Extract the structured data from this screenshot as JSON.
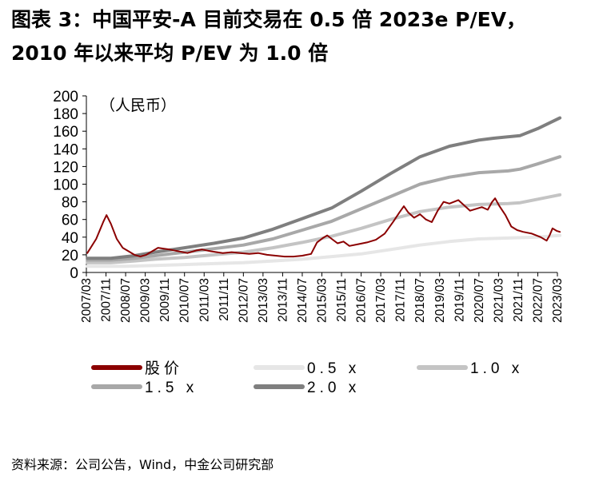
{
  "figure": {
    "title_line1": "图表 3：中国平安-A 目前交易在 0.5 倍 2023e P/EV，",
    "title_line2": "2010 年以来平均 P/EV 为 1.0 倍",
    "source": "资料来源：公司公告，Wind，中金公司研究部"
  },
  "chart_data": {
    "type": "line",
    "unit_label": "（人民币）",
    "ylim": [
      0,
      200
    ],
    "yticks": [
      "0",
      "20",
      "40",
      "60",
      "80",
      "100",
      "120",
      "140",
      "160",
      "180",
      "200"
    ],
    "x_tick_labels": [
      "2007/03",
      "2007/11",
      "2008/07",
      "2009/03",
      "2009/11",
      "2010/07",
      "2011/03",
      "2011/11",
      "2012/07",
      "2013/03",
      "2013/11",
      "2014/07",
      "2015/03",
      "2015/11",
      "2016/07",
      "2017/03",
      "2017/11",
      "2018/07",
      "2019/03",
      "2019/11",
      "2020/07",
      "2021/03",
      "2021/11",
      "2022/07",
      "2023/03"
    ],
    "legend_position": "bottom",
    "series": [
      {
        "name": "股价",
        "legend_label": "股价",
        "color": "#8b0000",
        "width": 2,
        "points": [
          [
            2007.2,
            22
          ],
          [
            2007.5,
            38
          ],
          [
            2007.75,
            58
          ],
          [
            2007.85,
            65
          ],
          [
            2008.0,
            55
          ],
          [
            2008.2,
            38
          ],
          [
            2008.4,
            28
          ],
          [
            2008.6,
            24
          ],
          [
            2008.8,
            20
          ],
          [
            2009.0,
            18
          ],
          [
            2009.2,
            20
          ],
          [
            2009.4,
            24
          ],
          [
            2009.6,
            28
          ],
          [
            2009.8,
            27
          ],
          [
            2010.0,
            26
          ],
          [
            2010.3,
            24
          ],
          [
            2010.6,
            22
          ],
          [
            2010.9,
            25
          ],
          [
            2011.1,
            26
          ],
          [
            2011.4,
            24
          ],
          [
            2011.8,
            22
          ],
          [
            2012.1,
            23
          ],
          [
            2012.4,
            22
          ],
          [
            2012.7,
            21
          ],
          [
            2013.0,
            22
          ],
          [
            2013.3,
            20
          ],
          [
            2013.6,
            19
          ],
          [
            2013.9,
            18
          ],
          [
            2014.2,
            18
          ],
          [
            2014.5,
            19
          ],
          [
            2014.8,
            21
          ],
          [
            2015.0,
            34
          ],
          [
            2015.2,
            39
          ],
          [
            2015.35,
            42
          ],
          [
            2015.5,
            38
          ],
          [
            2015.7,
            33
          ],
          [
            2015.9,
            35
          ],
          [
            2016.1,
            30
          ],
          [
            2016.4,
            32
          ],
          [
            2016.7,
            34
          ],
          [
            2017.0,
            37
          ],
          [
            2017.3,
            44
          ],
          [
            2017.6,
            58
          ],
          [
            2017.8,
            68
          ],
          [
            2017.95,
            75
          ],
          [
            2018.1,
            68
          ],
          [
            2018.3,
            62
          ],
          [
            2018.5,
            66
          ],
          [
            2018.7,
            60
          ],
          [
            2018.9,
            57
          ],
          [
            2019.1,
            70
          ],
          [
            2019.3,
            80
          ],
          [
            2019.5,
            78
          ],
          [
            2019.8,
            82
          ],
          [
            2020.0,
            76
          ],
          [
            2020.2,
            70
          ],
          [
            2020.4,
            72
          ],
          [
            2020.6,
            74
          ],
          [
            2020.8,
            71
          ],
          [
            2020.95,
            80
          ],
          [
            2021.05,
            84
          ],
          [
            2021.2,
            75
          ],
          [
            2021.4,
            65
          ],
          [
            2021.6,
            52
          ],
          [
            2021.8,
            48
          ],
          [
            2022.0,
            46
          ],
          [
            2022.3,
            44
          ],
          [
            2022.6,
            40
          ],
          [
            2022.8,
            36
          ],
          [
            2022.9,
            42
          ],
          [
            2023.0,
            50
          ],
          [
            2023.15,
            47
          ],
          [
            2023.25,
            46
          ]
        ]
      },
      {
        "name": "0.5 x",
        "legend_label": "0.5 x",
        "color": "#e6e6e6",
        "width": 4,
        "points": [
          [
            2007.2,
            7
          ],
          [
            2008.5,
            7
          ],
          [
            2009.5,
            8
          ],
          [
            2010.5,
            9
          ],
          [
            2011.5,
            10
          ],
          [
            2012.5,
            11
          ],
          [
            2013.5,
            13
          ],
          [
            2014.5,
            15
          ],
          [
            2015.5,
            18
          ],
          [
            2016.5,
            21
          ],
          [
            2017.5,
            26
          ],
          [
            2018.5,
            31
          ],
          [
            2019.5,
            35
          ],
          [
            2020.5,
            38
          ],
          [
            2021.5,
            39
          ],
          [
            2022.5,
            40
          ],
          [
            2023.25,
            42
          ]
        ]
      },
      {
        "name": "1.0 x",
        "legend_label": "1.0 x",
        "color": "#c4c4c4",
        "width": 4,
        "points": [
          [
            2007.2,
            11
          ],
          [
            2008.0,
            11
          ],
          [
            2008.8,
            13
          ],
          [
            2009.5,
            15
          ],
          [
            2010.5,
            17
          ],
          [
            2011.5,
            20
          ],
          [
            2012.5,
            23
          ],
          [
            2013.5,
            28
          ],
          [
            2014.5,
            34
          ],
          [
            2015.5,
            41
          ],
          [
            2016.5,
            50
          ],
          [
            2017.5,
            60
          ],
          [
            2018.5,
            69
          ],
          [
            2019.5,
            74
          ],
          [
            2020.5,
            77
          ],
          [
            2021.5,
            78
          ],
          [
            2021.9,
            79
          ],
          [
            2022.5,
            83
          ],
          [
            2023.25,
            88
          ]
        ]
      },
      {
        "name": "1.5 x",
        "legend_label": "1.5 x",
        "color": "#a8a8a8",
        "width": 4,
        "points": [
          [
            2007.2,
            14
          ],
          [
            2008.0,
            14
          ],
          [
            2008.8,
            16
          ],
          [
            2009.5,
            19
          ],
          [
            2010.5,
            23
          ],
          [
            2011.5,
            27
          ],
          [
            2012.5,
            31
          ],
          [
            2013.5,
            38
          ],
          [
            2014.5,
            48
          ],
          [
            2015.5,
            58
          ],
          [
            2016.5,
            72
          ],
          [
            2017.5,
            86
          ],
          [
            2018.5,
            100
          ],
          [
            2019.5,
            108
          ],
          [
            2020.5,
            113
          ],
          [
            2021.5,
            115
          ],
          [
            2021.9,
            117
          ],
          [
            2022.5,
            123
          ],
          [
            2023.25,
            131
          ]
        ]
      },
      {
        "name": "2.0 x",
        "legend_label": "2.0 x",
        "color": "#7f7f7f",
        "width": 4,
        "points": [
          [
            2007.2,
            16
          ],
          [
            2008.0,
            16
          ],
          [
            2008.8,
            19
          ],
          [
            2009.5,
            23
          ],
          [
            2010.5,
            28
          ],
          [
            2011.5,
            33
          ],
          [
            2012.5,
            39
          ],
          [
            2013.5,
            49
          ],
          [
            2014.5,
            61
          ],
          [
            2015.5,
            73
          ],
          [
            2016.5,
            92
          ],
          [
            2017.5,
            112
          ],
          [
            2018.5,
            131
          ],
          [
            2019.5,
            143
          ],
          [
            2020.5,
            150
          ],
          [
            2021.0,
            152
          ],
          [
            2021.9,
            155
          ],
          [
            2022.5,
            163
          ],
          [
            2023.25,
            175
          ]
        ]
      }
    ]
  }
}
